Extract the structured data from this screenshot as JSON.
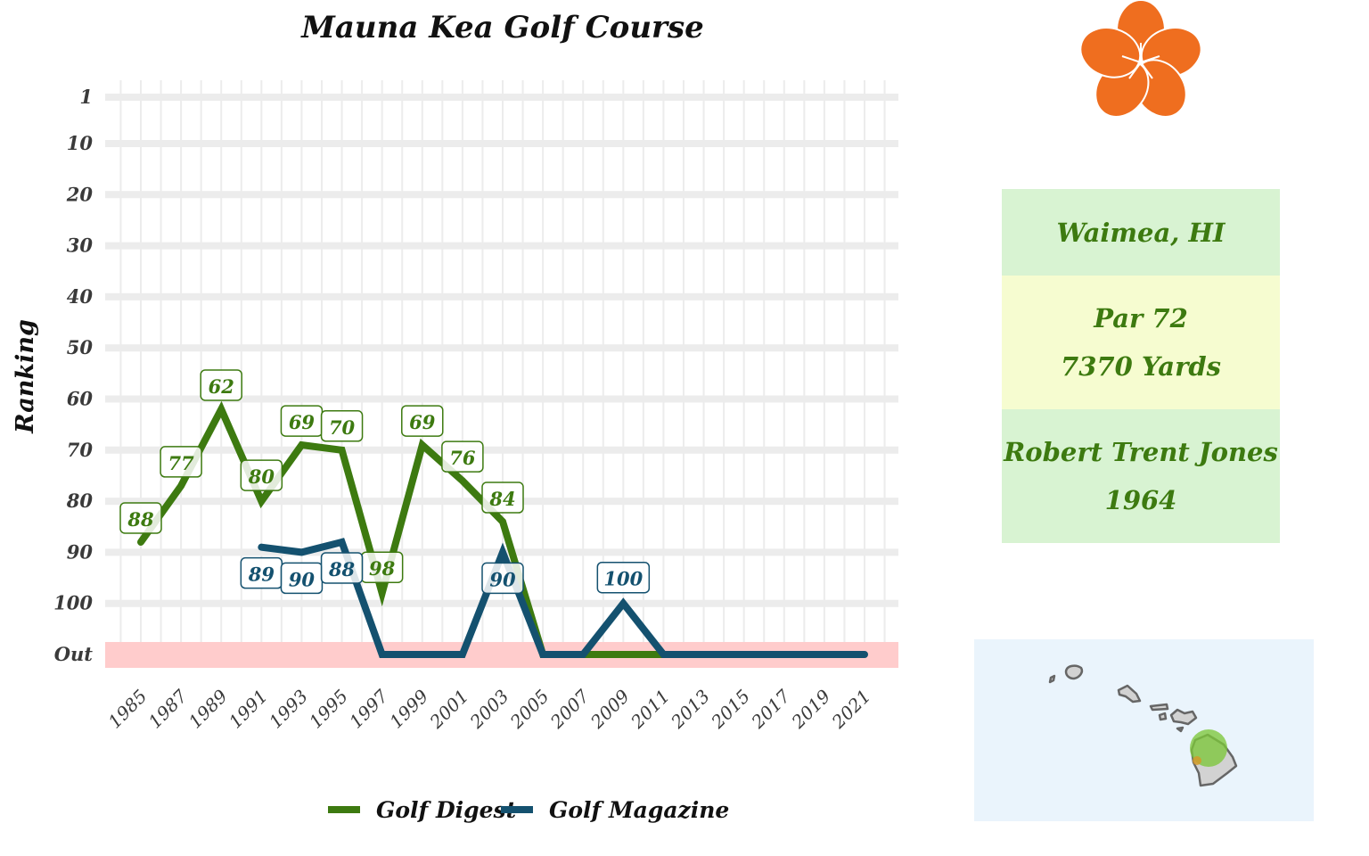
{
  "colors": {
    "golf_digest": "#3d7a10",
    "golf_magazine": "#14516f",
    "out_band": "#ffcccc",
    "gridline": "#ececec",
    "flower": "#ef6e1f",
    "box_green": "#d8f3d2",
    "box_yellow": "#f6fcd0",
    "box_text": "#3d7a10",
    "map_background": "#eaf4fc",
    "island_fill": "#d2d2d2",
    "island_stroke": "#666666",
    "location_marker": "#7cc63a"
  },
  "info": {
    "location": "Waimea, HI",
    "par": "Par 72",
    "yards": "7370 Yards",
    "architect": "Robert Trent Jones",
    "year": "1964"
  },
  "icons": {
    "flower": "plumeria-flower-icon",
    "map": "hawaii-islands-map"
  },
  "chart_data": {
    "type": "line",
    "title": "Mauna Kea Golf Course",
    "xlabel": "",
    "ylabel": "Ranking",
    "y_reversed": true,
    "ylim": [
      1,
      110
    ],
    "y_ticks": [
      {
        "label": "1",
        "value": 1
      },
      {
        "label": "10",
        "value": 10
      },
      {
        "label": "20",
        "value": 20
      },
      {
        "label": "30",
        "value": 30
      },
      {
        "label": "40",
        "value": 40
      },
      {
        "label": "50",
        "value": 50
      },
      {
        "label": "60",
        "value": 60
      },
      {
        "label": "70",
        "value": 70
      },
      {
        "label": "80",
        "value": 80
      },
      {
        "label": "90",
        "value": 90
      },
      {
        "label": "100",
        "value": 100
      },
      {
        "label": "Out",
        "value": 110
      }
    ],
    "xlim": [
      1984,
      2022
    ],
    "x_ticks": [
      1985,
      1987,
      1989,
      1991,
      1993,
      1995,
      1997,
      1999,
      2001,
      2003,
      2005,
      2007,
      2009,
      2011,
      2013,
      2015,
      2017,
      2019,
      2021
    ],
    "out_value": 110,
    "grid": true,
    "legend_position": "bottom",
    "series": [
      {
        "name": "Golf Digest",
        "color": "#3d7a10",
        "points": [
          {
            "x": 1985,
            "y": 88,
            "label": "88"
          },
          {
            "x": 1987,
            "y": 77,
            "label": "77"
          },
          {
            "x": 1989,
            "y": 62,
            "label": "62"
          },
          {
            "x": 1991,
            "y": 80,
            "label": "80"
          },
          {
            "x": 1993,
            "y": 69,
            "label": "69"
          },
          {
            "x": 1995,
            "y": 70,
            "label": "70"
          },
          {
            "x": 1997,
            "y": 98,
            "label": "98"
          },
          {
            "x": 1999,
            "y": 69,
            "label": "69"
          },
          {
            "x": 2001,
            "y": 76,
            "label": "76"
          },
          {
            "x": 2003,
            "y": 84,
            "label": "84"
          },
          {
            "x": 2005,
            "y": 110
          },
          {
            "x": 2007,
            "y": 110
          },
          {
            "x": 2009,
            "y": 110
          },
          {
            "x": 2011,
            "y": 110
          }
        ]
      },
      {
        "name": "Golf Magazine",
        "color": "#14516f",
        "points": [
          {
            "x": 1991,
            "y": 89,
            "label": "89"
          },
          {
            "x": 1993,
            "y": 90,
            "label": "90"
          },
          {
            "x": 1995,
            "y": 88,
            "label": "88"
          },
          {
            "x": 1997,
            "y": 110
          },
          {
            "x": 1999,
            "y": 110
          },
          {
            "x": 2001,
            "y": 110
          },
          {
            "x": 2003,
            "y": 90,
            "label": "90"
          },
          {
            "x": 2005,
            "y": 110
          },
          {
            "x": 2007,
            "y": 110
          },
          {
            "x": 2009,
            "y": 100,
            "label": "100"
          },
          {
            "x": 2011,
            "y": 110
          },
          {
            "x": 2013,
            "y": 110
          },
          {
            "x": 2015,
            "y": 110
          },
          {
            "x": 2017,
            "y": 110
          },
          {
            "x": 2019,
            "y": 110
          },
          {
            "x": 2021,
            "y": 110
          }
        ]
      }
    ]
  }
}
